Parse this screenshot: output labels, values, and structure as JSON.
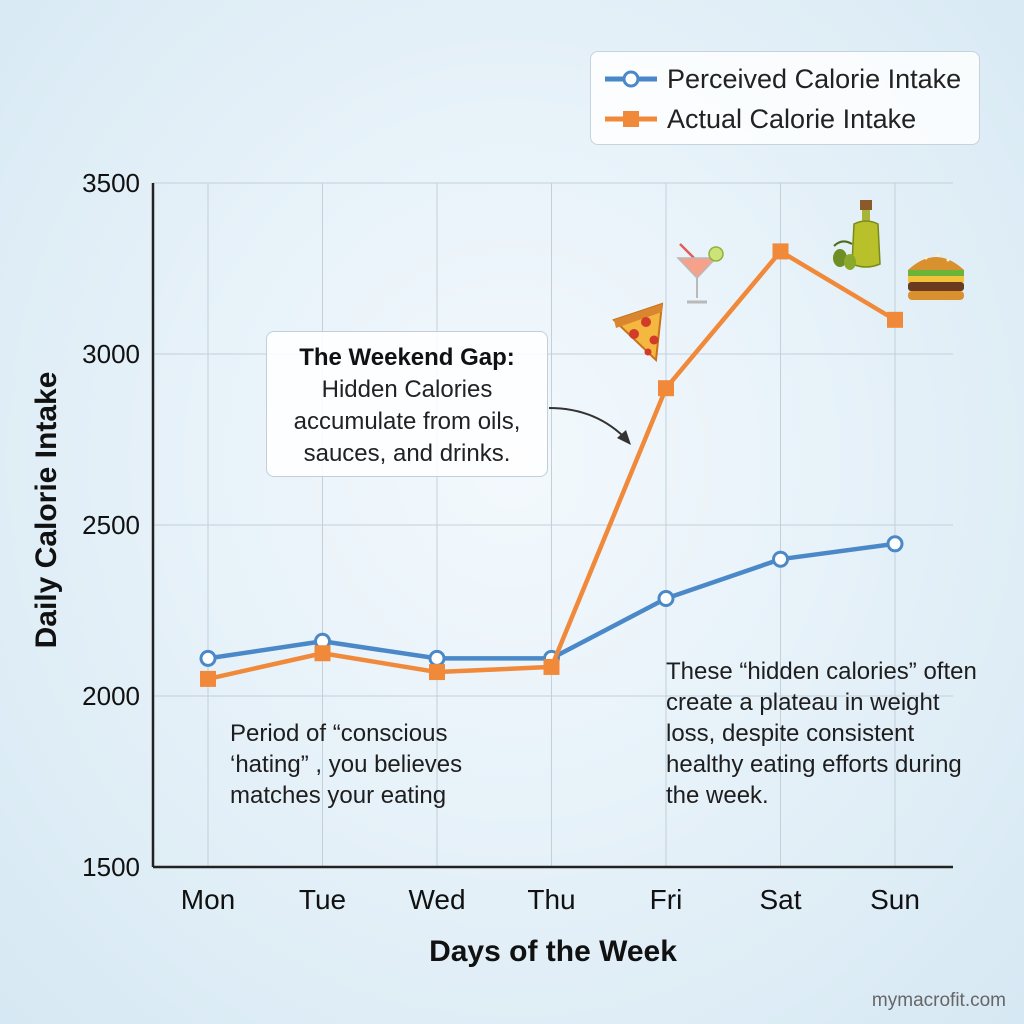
{
  "chart_data": {
    "type": "line",
    "categories": [
      "Mon",
      "Tue",
      "Wed",
      "Thu",
      "Fri",
      "Sat",
      "Sun"
    ],
    "series": [
      {
        "name": "Perceived Calorie Intake",
        "color": "#4a88c8",
        "marker": "circle",
        "values": [
          2110,
          2160,
          2110,
          2110,
          2285,
          2400,
          2445
        ]
      },
      {
        "name": "Actual Calorie Intake",
        "color": "#f0893a",
        "marker": "square",
        "values": [
          2050,
          2125,
          2070,
          2085,
          2900,
          3300,
          3100
        ]
      }
    ],
    "title": "",
    "xlabel": "Days of the Week",
    "ylabel": "Daily Calorie Intake",
    "ylim": [
      1500,
      3500
    ],
    "yticks": [
      "3500",
      "3000",
      "2500",
      "2000",
      "1500"
    ],
    "grid": true,
    "legend_position": "top-right"
  },
  "callout": {
    "title": "The Weekend Gap:",
    "lines": [
      "Hidden Calories",
      "accumulate from oils,",
      "sauces, and drinks."
    ]
  },
  "notes": {
    "left": "Period of “conscious ‘hating” , you believes matches your eating",
    "right": "These “hidden calories” often create a plateau in weight loss, despite consistent healthy eating efforts during the week."
  },
  "icons": [
    "pizza-icon",
    "cocktail-icon",
    "olive-oil-icon",
    "burger-icon"
  ],
  "watermark": "mymacrofit.com"
}
